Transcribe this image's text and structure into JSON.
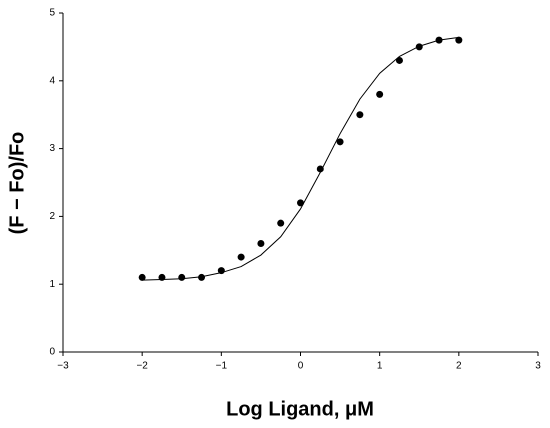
{
  "chart_data": {
    "type": "scatter",
    "xlabel": "Log Ligand, μM",
    "ylabel": "(F − Fo)/Fo",
    "xlim": [
      -3,
      3
    ],
    "xticks": [
      {
        "value": -3,
        "label": "−3"
      },
      {
        "value": -2,
        "label": "−2"
      },
      {
        "value": -1,
        "label": "−1"
      },
      0,
      1,
      2,
      3
    ],
    "ylim": [
      0,
      5
    ],
    "yticks": [
      0,
      1,
      2,
      3,
      4,
      5
    ],
    "series": [
      {
        "name": "Data",
        "color": "#000000",
        "mode": "markers",
        "x": [
          -2,
          -1.75,
          -1.5,
          -1.25,
          -1,
          -0.75,
          -0.5,
          -0.25,
          0,
          0.25,
          0.5,
          0.75,
          1,
          1.25,
          1.5,
          1.75,
          2
        ],
        "values": [
          1.1,
          1.1,
          1.1,
          1.1,
          1.2,
          1.4,
          1.6,
          1.9,
          2.2,
          2.7,
          3.1,
          3.5,
          3.8,
          4.3,
          4.5,
          4.6,
          4.6
        ]
      },
      {
        "name": "Fit",
        "color": "#000000",
        "mode": "line",
        "x": [
          -2,
          -1.75,
          -1.5,
          -1.25,
          -1,
          -0.75,
          -0.5,
          -0.25,
          0,
          0.25,
          0.5,
          0.75,
          1,
          1.25,
          1.5,
          1.75,
          2
        ],
        "values": [
          1.06,
          1.07,
          1.08,
          1.11,
          1.17,
          1.26,
          1.43,
          1.7,
          2.11,
          2.65,
          3.22,
          3.73,
          4.11,
          4.36,
          4.51,
          4.6,
          4.64
        ]
      }
    ]
  }
}
